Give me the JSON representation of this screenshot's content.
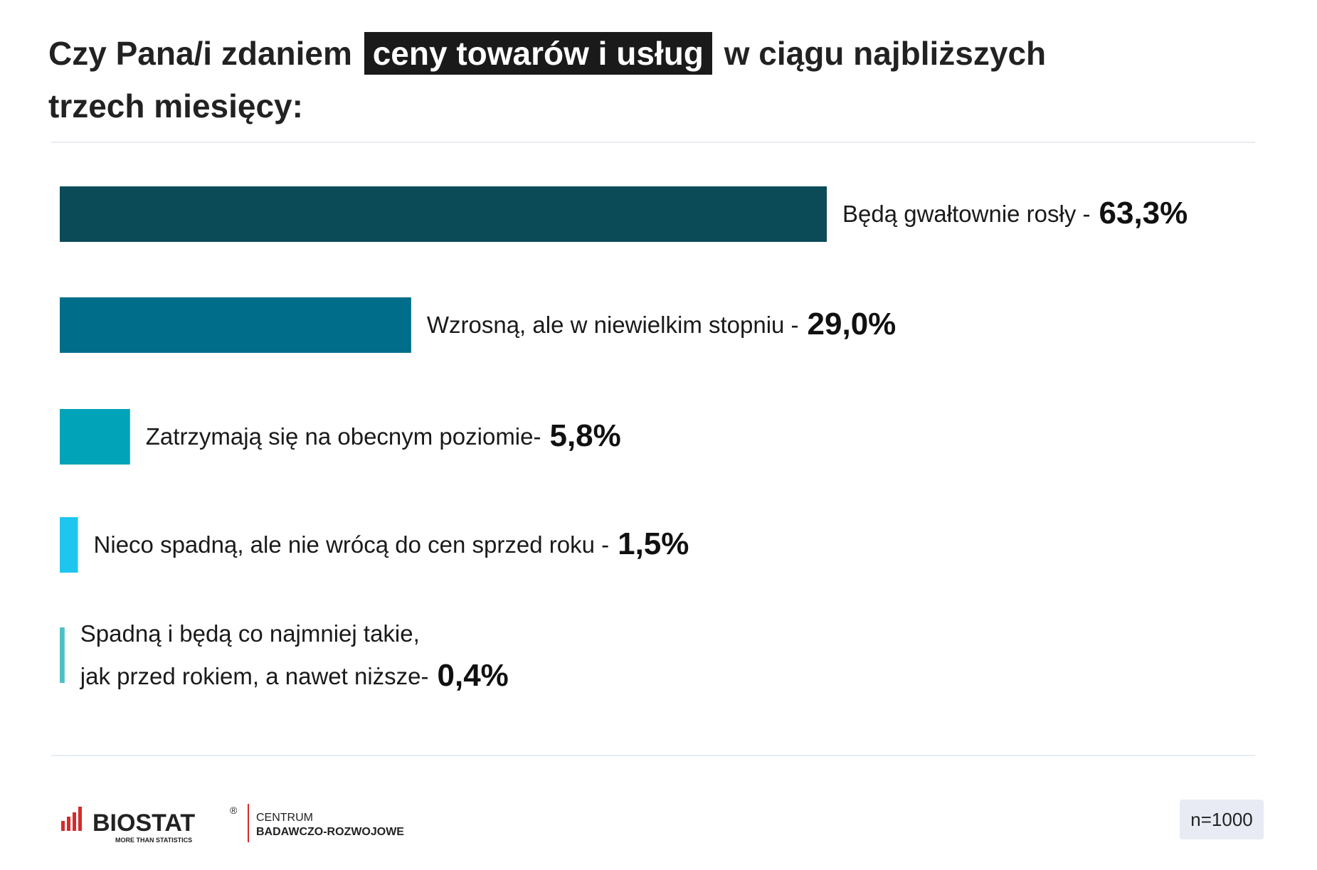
{
  "title": {
    "before": "Czy Pana/i zdaniem",
    "highlight": "ceny towarów i usług",
    "after": "w ciągu najbliższych",
    "line2": "trzech miesięcy:"
  },
  "chart_data": {
    "type": "bar",
    "orientation": "horizontal",
    "categories": [
      "Będą gwałtownie rosły -",
      "Wzrosną, ale w niewielkim stopniu -",
      "Zatrzymają się na obecnym poziomie-",
      "Nieco spadną, ale nie wrócą do cen sprzed roku -",
      "Spadną i będą co najmniej takie,\njak przed rokiem, a nawet niższe-"
    ],
    "values": [
      63.3,
      29.0,
      5.8,
      1.5,
      0.4
    ],
    "value_labels": [
      "63,3%",
      "29,0%",
      "5,8%",
      "1,5%",
      "0,4%"
    ],
    "colors": [
      "#0b4a57",
      "#006e8a",
      "#00a3b8",
      "#1ec6ef",
      "#4dc0c6"
    ],
    "xlim": [
      0,
      63.3
    ],
    "grid": false,
    "legend": "none"
  },
  "footer": {
    "logo_text": "BIOSTAT",
    "logo_registered": "®",
    "logo_tagline": "MORE THAN STATISTICS",
    "center_line1": "CENTRUM",
    "center_line2": "BADAWCZO-ROZWOJOWE",
    "sample_size": "n=1000"
  }
}
